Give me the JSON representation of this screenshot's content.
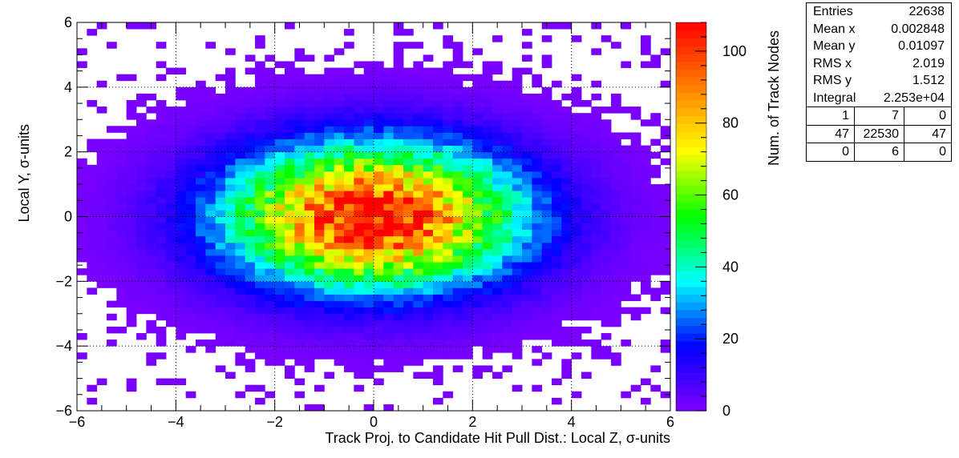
{
  "chart_data": {
    "type": "heatmap",
    "xlabel": "Track Proj. to Candidate Hit Pull Dist.: Local Z, σ-units",
    "ylabel": "Local Y, σ-units",
    "zlabel": "Num. of Track Nodes",
    "xlim": [
      -6,
      6
    ],
    "ylim": [
      -6,
      6
    ],
    "zlim": [
      0,
      108
    ],
    "x_ticks": [
      -6,
      -4,
      -2,
      0,
      2,
      4,
      6
    ],
    "y_ticks": [
      -6,
      -4,
      -2,
      0,
      2,
      4,
      6
    ],
    "z_ticks": [
      0,
      20,
      40,
      60,
      80,
      100
    ],
    "bins": {
      "nx": 60,
      "ny": 60
    },
    "distribution": {
      "model": "2d-gaussian",
      "entries": 22638,
      "mean_x": 0.002848,
      "mean_y": 0.01097,
      "rms_x": 2.019,
      "rms_y": 1.512,
      "peak": 108
    },
    "grid": true,
    "colormap": [
      "#8000ff",
      "#0000ff",
      "#00ffff",
      "#00ff00",
      "#ffff00",
      "#ff8000",
      "#ff0000"
    ]
  },
  "stats_box": {
    "rows": [
      {
        "label": "Entries",
        "value": "22638"
      },
      {
        "label": "Mean x",
        "value": "0.002848"
      },
      {
        "label": "Mean y",
        "value": "0.01097"
      },
      {
        "label": "RMS x",
        "value": "2.019"
      },
      {
        "label": "RMS y",
        "value": "1.512"
      },
      {
        "label": "Integral",
        "value": "2.253e+04"
      }
    ],
    "overflow_grid": [
      [
        "1",
        "7",
        "0"
      ],
      [
        "47",
        "22530",
        "47"
      ],
      [
        "0",
        "6",
        "0"
      ]
    ]
  }
}
